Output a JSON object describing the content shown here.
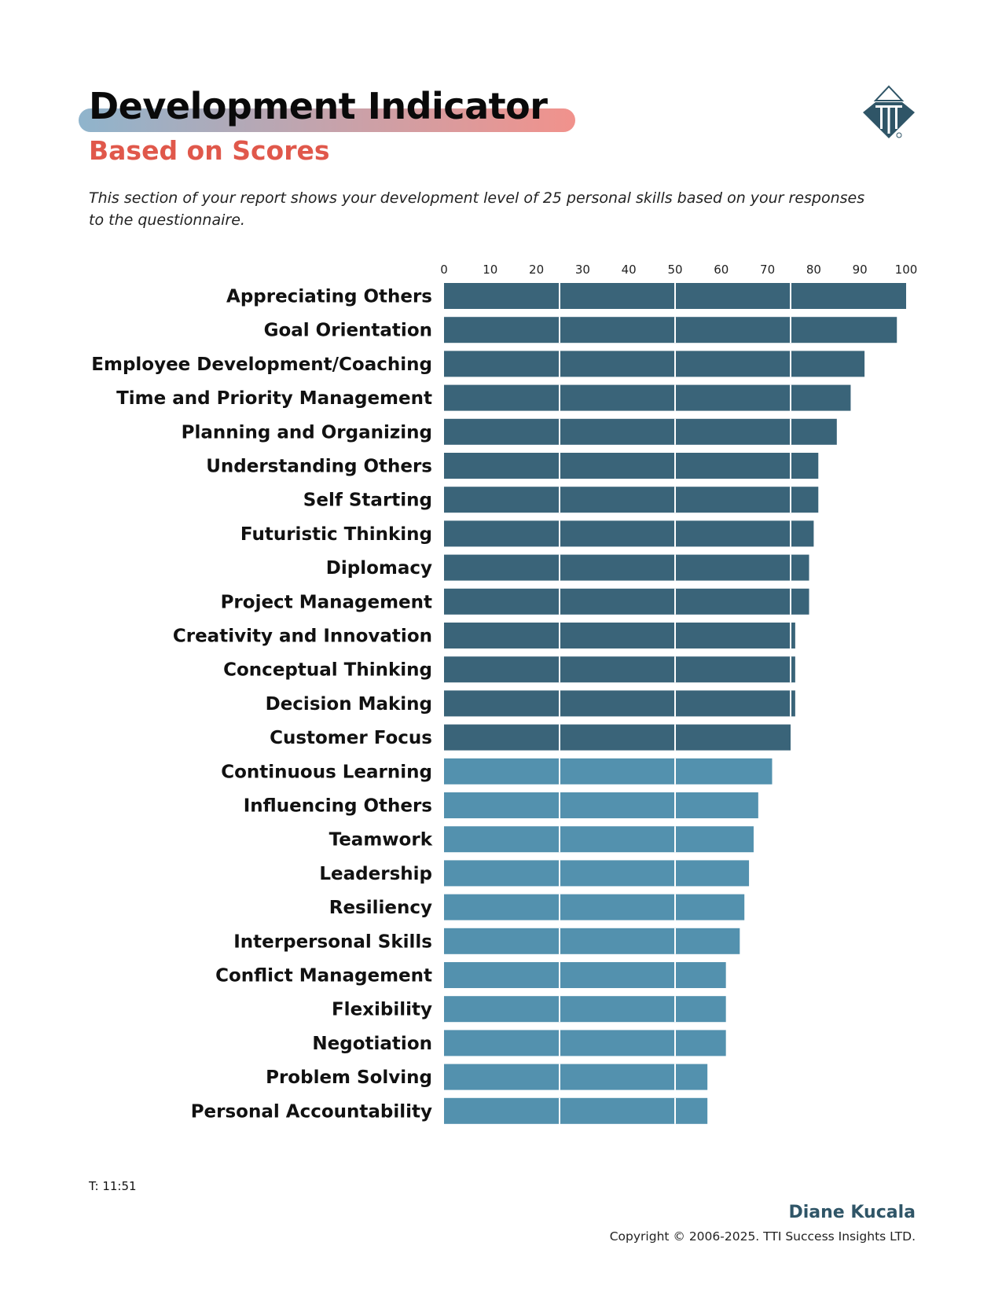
{
  "header": {
    "title": "Development Indicator",
    "subtitle": "Based on Scores",
    "description": "This section of your report shows your development level of 25 personal skills based on your responses to the questionnaire."
  },
  "colors": {
    "dark_bar": "#3a6479",
    "light_bar": "#5391ae",
    "subtitle": "#e0584b",
    "logo": "#2f5567"
  },
  "logo": {
    "icon": "tti-logo-icon"
  },
  "chart_data": {
    "type": "bar",
    "orientation": "horizontal",
    "title": "",
    "xlabel": "",
    "ylabel": "",
    "xlim": [
      0,
      100
    ],
    "ticks": [
      0,
      10,
      20,
      30,
      40,
      50,
      60,
      70,
      80,
      90,
      100
    ],
    "dark_threshold": 75,
    "categories": [
      "Appreciating Others",
      "Goal Orientation",
      "Employee Development/Coaching",
      "Time and Priority Management",
      "Planning and Organizing",
      "Understanding Others",
      "Self Starting",
      "Futuristic Thinking",
      "Diplomacy",
      "Project Management",
      "Creativity and Innovation",
      "Conceptual Thinking",
      "Decision Making",
      "Customer Focus",
      "Continuous Learning",
      "Influencing Others",
      "Teamwork",
      "Leadership",
      "Resiliency",
      "Interpersonal Skills",
      "Conflict Management",
      "Flexibility",
      "Negotiation",
      "Problem Solving",
      "Personal Accountability"
    ],
    "values": [
      100,
      98,
      91,
      88,
      85,
      81,
      81,
      80,
      79,
      79,
      76,
      76,
      76,
      75,
      71,
      68,
      67,
      66,
      65,
      64,
      61,
      61,
      61,
      57,
      57
    ],
    "gridlines": [
      25,
      50,
      75
    ]
  },
  "footer": {
    "time": "T: 11:51",
    "name": "Diane Kucala",
    "copyright": "Copyright © 2006-2025. TTI Success Insights LTD."
  }
}
